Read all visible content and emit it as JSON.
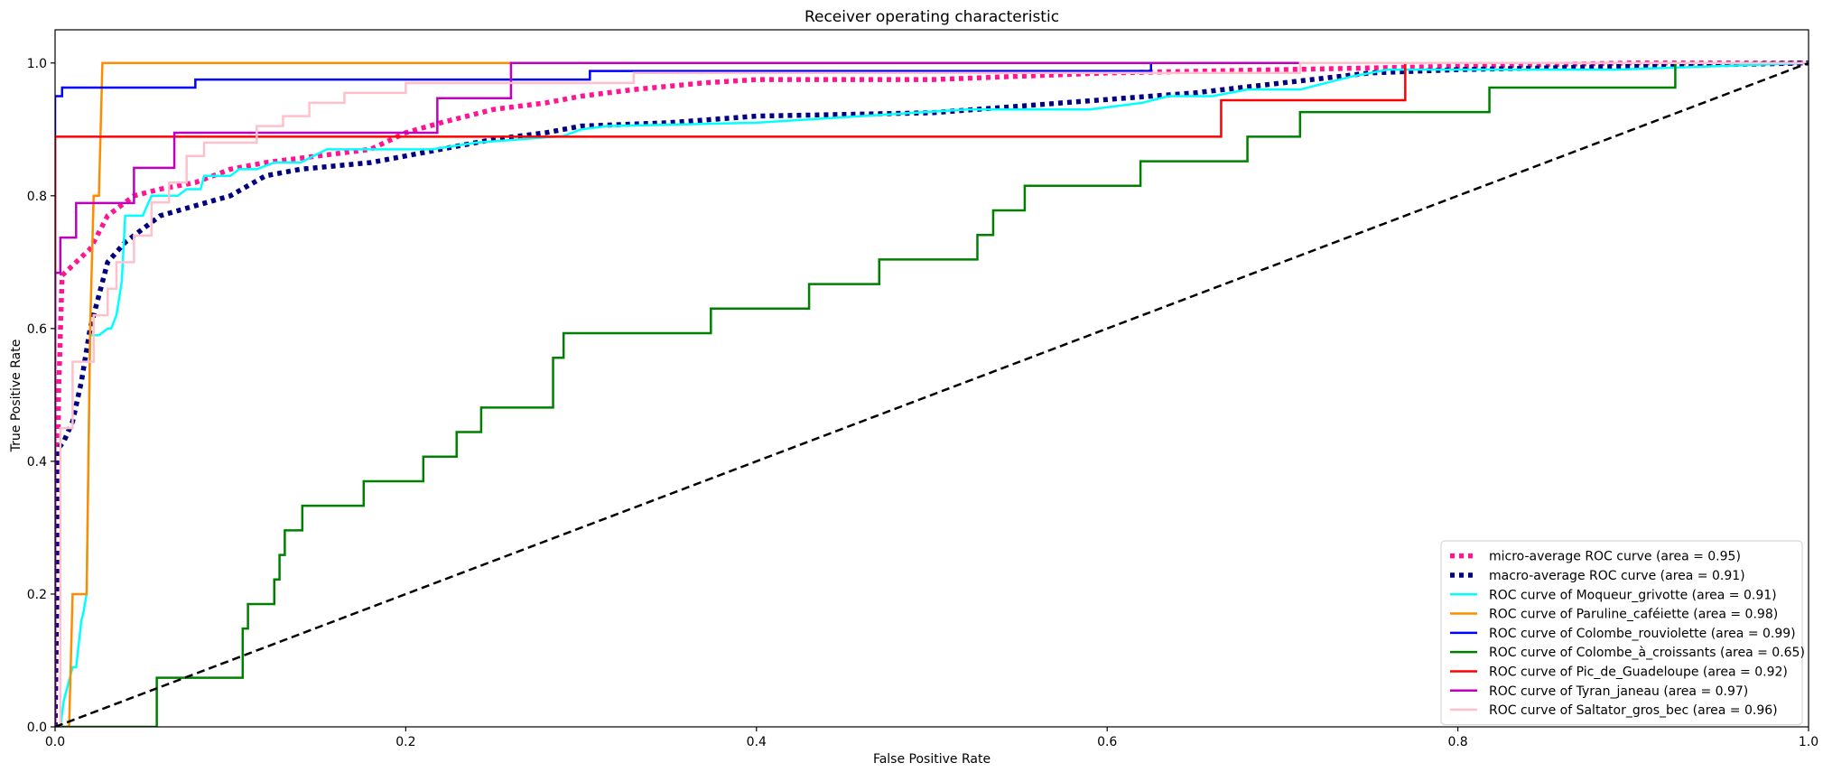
{
  "chart_data": {
    "type": "line",
    "title": "Receiver operating characteristic",
    "xlabel": "False Positive Rate",
    "ylabel": "True Positive Rate",
    "xlim": [
      0.0,
      1.0
    ],
    "ylim": [
      0.0,
      1.05
    ],
    "xticks": [
      "0.0",
      "0.2",
      "0.4",
      "0.6",
      "0.8",
      "1.0"
    ],
    "yticks": [
      "0.0",
      "0.2",
      "0.4",
      "0.6",
      "0.8",
      "1.0"
    ],
    "grid": false,
    "legend_position": "lower right",
    "series": [
      {
        "name": "micro-average ROC curve (area = 0.95)",
        "color": "#ff1493",
        "style": "dotted",
        "x": [
          0,
          0.002,
          0.004,
          0.008,
          0.012,
          0.02,
          0.03,
          0.045,
          0.06,
          0.08,
          0.1,
          0.12,
          0.15,
          0.18,
          0.2,
          0.22,
          0.25,
          0.28,
          0.3,
          0.33,
          0.37,
          0.4,
          0.5,
          0.6,
          0.7,
          0.8,
          0.9,
          1.0
        ],
        "y": [
          0,
          0.5,
          0.68,
          0.69,
          0.7,
          0.72,
          0.77,
          0.8,
          0.81,
          0.82,
          0.84,
          0.85,
          0.86,
          0.87,
          0.895,
          0.91,
          0.93,
          0.94,
          0.95,
          0.96,
          0.97,
          0.975,
          0.975,
          0.985,
          0.99,
          0.995,
          1.0,
          1.0
        ]
      },
      {
        "name": "macro-average ROC curve (area = 0.91)",
        "color": "#000080",
        "style": "dotted",
        "x": [
          0,
          0.002,
          0.005,
          0.01,
          0.015,
          0.02,
          0.03,
          0.04,
          0.05,
          0.06,
          0.08,
          0.1,
          0.12,
          0.14,
          0.16,
          0.18,
          0.2,
          0.22,
          0.25,
          0.28,
          0.3,
          0.35,
          0.4,
          0.5,
          0.55,
          0.6,
          0.65,
          0.7,
          0.75,
          0.8,
          0.9,
          1.0
        ],
        "y": [
          0,
          0.42,
          0.43,
          0.46,
          0.52,
          0.6,
          0.7,
          0.73,
          0.75,
          0.77,
          0.785,
          0.8,
          0.83,
          0.84,
          0.845,
          0.85,
          0.86,
          0.87,
          0.885,
          0.895,
          0.905,
          0.91,
          0.92,
          0.925,
          0.935,
          0.945,
          0.955,
          0.97,
          0.985,
          0.99,
          0.995,
          1.0
        ]
      },
      {
        "name": "ROC curve of Moqueur_grivotte (area = 0.91)",
        "color": "#00ffff",
        "style": "solid",
        "x": [
          0,
          0.003,
          0.005,
          0.01,
          0.012,
          0.015,
          0.016,
          0.018,
          0.02,
          0.025,
          0.03,
          0.032,
          0.035,
          0.038,
          0.04,
          0.05,
          0.055,
          0.07,
          0.075,
          0.083,
          0.085,
          0.1,
          0.105,
          0.115,
          0.12,
          0.125,
          0.14,
          0.155,
          0.215,
          0.24,
          0.29,
          0.3,
          0.315,
          0.4,
          0.52,
          0.59,
          0.62,
          0.635,
          0.66,
          0.68,
          0.71,
          0.725,
          0.74,
          0.76,
          0.89,
          1.0
        ],
        "y": [
          0,
          0.0,
          0.04,
          0.09,
          0.09,
          0.16,
          0.17,
          0.2,
          0.59,
          0.59,
          0.6,
          0.6,
          0.62,
          0.67,
          0.77,
          0.77,
          0.8,
          0.8,
          0.81,
          0.81,
          0.83,
          0.83,
          0.84,
          0.84,
          0.845,
          0.85,
          0.85,
          0.87,
          0.87,
          0.88,
          0.89,
          0.9,
          0.905,
          0.91,
          0.93,
          0.93,
          0.94,
          0.95,
          0.95,
          0.96,
          0.96,
          0.97,
          0.98,
          0.99,
          0.99,
          1.0
        ]
      },
      {
        "name": "ROC curve of Paruline_caféiette (area = 0.98)",
        "color": "#ff8c00",
        "style": "solid",
        "x": [
          0,
          0.008,
          0.01,
          0.012,
          0.018,
          0.02,
          0.022,
          0.025,
          0.027,
          0.03,
          1.0
        ],
        "y": [
          0,
          0.0,
          0.2,
          0.2,
          0.2,
          0.6,
          0.8,
          0.8,
          1.0,
          1.0,
          1.0
        ]
      },
      {
        "name": "ROC curve of Colombe_rouviolette (area = 0.99)",
        "color": "#0000ff",
        "style": "solid",
        "x": [
          0,
          0.0,
          0.004,
          0.004,
          0.012,
          0.012,
          0.08,
          0.08,
          0.305,
          0.305,
          0.625,
          0.625,
          1.0
        ],
        "y": [
          0,
          0.95,
          0.95,
          0.963,
          0.963,
          0.963,
          0.963,
          0.975,
          0.975,
          0.988,
          0.988,
          1.0,
          1.0
        ]
      },
      {
        "name": "ROC curve of Colombe_à_croissants (area = 0.65)",
        "color": "#008000",
        "style": "solid",
        "x": [
          0,
          0.058,
          0.058,
          0.107,
          0.107,
          0.11,
          0.11,
          0.125,
          0.125,
          0.128,
          0.128,
          0.131,
          0.131,
          0.141,
          0.141,
          0.176,
          0.176,
          0.21,
          0.21,
          0.229,
          0.229,
          0.243,
          0.243,
          0.284,
          0.284,
          0.29,
          0.29,
          0.374,
          0.374,
          0.43,
          0.43,
          0.47,
          0.47,
          0.526,
          0.526,
          0.535,
          0.535,
          0.553,
          0.553,
          0.619,
          0.619,
          0.68,
          0.68,
          0.71,
          0.71,
          0.818,
          0.818,
          0.924,
          0.924,
          1.0
        ],
        "y": [
          0,
          0.0,
          0.074,
          0.074,
          0.148,
          0.148,
          0.185,
          0.185,
          0.222,
          0.222,
          0.259,
          0.259,
          0.296,
          0.296,
          0.333,
          0.333,
          0.37,
          0.37,
          0.407,
          0.407,
          0.444,
          0.444,
          0.481,
          0.481,
          0.556,
          0.556,
          0.593,
          0.593,
          0.63,
          0.63,
          0.667,
          0.667,
          0.704,
          0.704,
          0.741,
          0.741,
          0.778,
          0.778,
          0.815,
          0.815,
          0.852,
          0.852,
          0.889,
          0.889,
          0.926,
          0.926,
          0.963,
          0.963,
          1.0,
          1.0
        ]
      },
      {
        "name": "ROC curve of Pic_de_Guadeloupe (area = 0.92)",
        "color": "#ff0000",
        "style": "solid",
        "x": [
          0,
          0.0,
          0.665,
          0.665,
          0.77,
          0.77,
          1.0
        ],
        "y": [
          0,
          0.889,
          0.889,
          0.944,
          0.944,
          1.0,
          1.0
        ]
      },
      {
        "name": "ROC curve of Tyran_janeau (area = 0.97)",
        "color": "#bf00bf",
        "style": "solid",
        "x": [
          0,
          0.0,
          0.003,
          0.003,
          0.012,
          0.012,
          0.045,
          0.045,
          0.068,
          0.068,
          0.218,
          0.218,
          0.26,
          0.26,
          1.0
        ],
        "y": [
          0,
          0.684,
          0.684,
          0.737,
          0.737,
          0.789,
          0.789,
          0.842,
          0.842,
          0.895,
          0.895,
          0.947,
          0.947,
          1.0,
          1.0
        ]
      },
      {
        "name": "ROC curve of Saltator_gros_bec (area = 0.96)",
        "color": "#ffc0cb",
        "style": "solid",
        "x": [
          0,
          0.003,
          0.003,
          0.01,
          0.01,
          0.022,
          0.022,
          0.03,
          0.03,
          0.035,
          0.035,
          0.045,
          0.045,
          0.055,
          0.055,
          0.065,
          0.065,
          0.075,
          0.075,
          0.085,
          0.085,
          0.115,
          0.115,
          0.13,
          0.13,
          0.145,
          0.145,
          0.165,
          0.165,
          0.2,
          0.2,
          0.33,
          0.33,
          0.71,
          0.71,
          1.0
        ],
        "y": [
          0,
          0.0,
          0.45,
          0.45,
          0.55,
          0.55,
          0.62,
          0.62,
          0.66,
          0.66,
          0.7,
          0.7,
          0.74,
          0.74,
          0.79,
          0.79,
          0.82,
          0.82,
          0.86,
          0.86,
          0.88,
          0.88,
          0.905,
          0.905,
          0.92,
          0.92,
          0.94,
          0.94,
          0.955,
          0.955,
          0.97,
          0.97,
          0.985,
          0.985,
          1.0,
          1.0
        ]
      }
    ],
    "reference_line": {
      "x": [
        0,
        1
      ],
      "y": [
        0,
        1
      ],
      "color": "#000000",
      "style": "dashed"
    }
  }
}
